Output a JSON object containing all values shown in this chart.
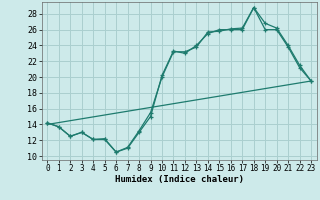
{
  "xlabel": "Humidex (Indice chaleur)",
  "bg_color": "#cdeaea",
  "line_color": "#1e7b6e",
  "grid_color": "#aacfcf",
  "xlim": [
    -0.5,
    23.5
  ],
  "ylim": [
    9.5,
    29.5
  ],
  "yticks": [
    10,
    12,
    14,
    16,
    18,
    20,
    22,
    24,
    26,
    28
  ],
  "xticks": [
    0,
    1,
    2,
    3,
    4,
    5,
    6,
    7,
    8,
    9,
    10,
    11,
    12,
    13,
    14,
    15,
    16,
    17,
    18,
    19,
    20,
    21,
    22,
    23
  ],
  "line1_x": [
    0,
    1,
    2,
    3,
    4,
    5,
    6,
    7,
    8,
    9,
    10,
    11,
    12,
    13,
    14,
    15,
    16,
    17,
    18,
    19,
    20,
    21,
    22,
    23
  ],
  "line1_y": [
    14.2,
    13.7,
    12.5,
    13.0,
    12.1,
    12.1,
    10.5,
    11.0,
    13.0,
    15.0,
    20.2,
    23.3,
    23.0,
    24.0,
    25.5,
    26.0,
    26.0,
    26.0,
    28.8,
    26.0,
    26.0,
    23.8,
    21.2,
    19.5
  ],
  "line2_x": [
    0,
    1,
    2,
    3,
    4,
    5,
    6,
    7,
    8,
    9,
    10,
    11,
    12,
    13,
    14,
    15,
    16,
    17,
    18,
    19,
    20,
    21,
    22,
    23
  ],
  "line2_y": [
    14.2,
    13.7,
    12.5,
    13.0,
    12.1,
    12.2,
    10.5,
    11.1,
    13.2,
    15.5,
    20.0,
    23.2,
    23.2,
    23.8,
    25.7,
    25.8,
    26.1,
    26.2,
    28.8,
    26.8,
    26.2,
    24.0,
    21.5,
    19.5
  ],
  "line3_x": [
    0,
    23
  ],
  "line3_y": [
    14.0,
    19.5
  ]
}
